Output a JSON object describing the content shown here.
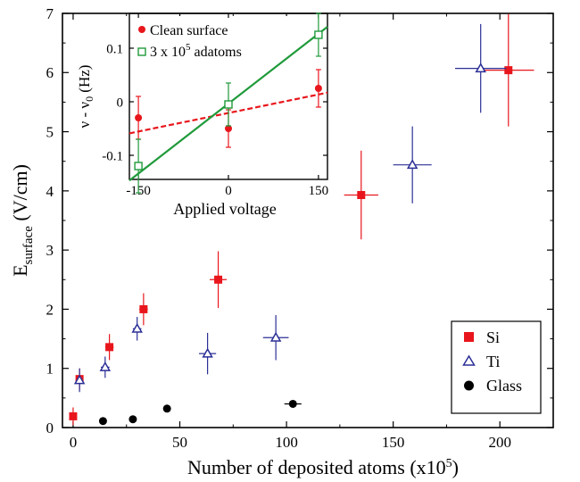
{
  "chart_data": [
    {
      "type": "scatter",
      "xlabel": "Number of deposited atoms (x10",
      "xlabel_sup": "5",
      "xlabel_tail": ")",
      "ylabel": "E",
      "ylabel_sub": "surface",
      "ylabel_tail": " (V/cm)",
      "xlim": [
        -5,
        225
      ],
      "ylim": [
        0,
        7
      ],
      "xticks": [
        0,
        50,
        100,
        150,
        200
      ],
      "yticks": [
        0,
        1,
        2,
        3,
        4,
        5,
        6,
        7
      ],
      "legend_position": "bottom-right",
      "series": [
        {
          "name": "Si",
          "color": "#e8161c",
          "marker": "square",
          "points": [
            {
              "x": 0,
              "y": 0.19,
              "xerr": 1,
              "yerr": 0.15
            },
            {
              "x": 3,
              "y": 0.82,
              "xerr": 1.5,
              "yerr": 0.18
            },
            {
              "x": 17,
              "y": 1.36,
              "xerr": 2,
              "yerr": 0.22
            },
            {
              "x": 33,
              "y": 2.0,
              "xerr": 2,
              "yerr": 0.27
            },
            {
              "x": 68,
              "y": 2.5,
              "xerr": 4,
              "yerr": 0.48
            },
            {
              "x": 135,
              "y": 3.93,
              "xerr": 8,
              "yerr": 0.75
            },
            {
              "x": 204,
              "y": 6.04,
              "xerr": 12,
              "yerr": 0.95
            }
          ]
        },
        {
          "name": "Ti",
          "color": "#2b2f96",
          "marker": "triangle-open",
          "points": [
            {
              "x": 3,
              "y": 0.8,
              "xerr": 1,
              "yerr": 0.2
            },
            {
              "x": 15,
              "y": 1.02,
              "xerr": 2,
              "yerr": 0.18
            },
            {
              "x": 30,
              "y": 1.67,
              "xerr": 2,
              "yerr": 0.2
            },
            {
              "x": 63,
              "y": 1.25,
              "xerr": 4,
              "yerr": 0.35
            },
            {
              "x": 95,
              "y": 1.52,
              "xerr": 6,
              "yerr": 0.38
            },
            {
              "x": 159,
              "y": 4.44,
              "xerr": 9,
              "yerr": 0.65
            },
            {
              "x": 191,
              "y": 6.07,
              "xerr": 12,
              "yerr": 0.75
            }
          ]
        },
        {
          "name": "Glass",
          "color": "#000000",
          "marker": "circle",
          "points": [
            {
              "x": 14,
              "y": 0.11,
              "xerr": 0,
              "yerr": 0
            },
            {
              "x": 28,
              "y": 0.14,
              "xerr": 0,
              "yerr": 0
            },
            {
              "x": 44,
              "y": 0.32,
              "xerr": 0,
              "yerr": 0
            },
            {
              "x": 103,
              "y": 0.4,
              "xerr": 4,
              "yerr": 0
            }
          ]
        }
      ]
    },
    {
      "type": "scatter",
      "xlabel": "Applied voltage",
      "ylabel": "ν - ν",
      "ylabel_sub": "0",
      "ylabel_tail": " (Hz)",
      "xlim": [
        -165,
        165
      ],
      "ylim": [
        -0.145,
        0.165
      ],
      "xticks": [
        -150,
        0,
        150
      ],
      "yticks": [
        -0.1,
        0,
        0.1
      ],
      "ytick_labels": [
        "-0.1",
        "0",
        "0.1"
      ],
      "legend_position": "top-left",
      "series": [
        {
          "name": "Clean surface",
          "color": "#e8161c",
          "marker": "circle",
          "points": [
            {
              "x": -150,
              "y": -0.03,
              "yerr": 0.04
            },
            {
              "x": 0,
              "y": -0.05,
              "yerr": 0.035
            },
            {
              "x": 150,
              "y": 0.025,
              "yerr": 0.035
            }
          ],
          "fit": {
            "style": "dashed",
            "x": [
              -165,
              165
            ],
            "y": [
              -0.059,
              0.017
            ]
          }
        },
        {
          "name": "3 x 10",
          "name_sup": "5",
          "name_tail": " adatoms",
          "color": "#1f9a3a",
          "marker": "square-open",
          "points": [
            {
              "x": -150,
              "y": -0.12,
              "yerr": 0.05
            },
            {
              "x": 0,
              "y": -0.005,
              "yerr": 0.04
            },
            {
              "x": 150,
              "y": 0.125,
              "yerr": 0.04
            }
          ],
          "fit": {
            "style": "solid",
            "x": [
              -165,
              165
            ],
            "y": [
              -0.147,
              0.14
            ]
          }
        }
      ]
    }
  ]
}
